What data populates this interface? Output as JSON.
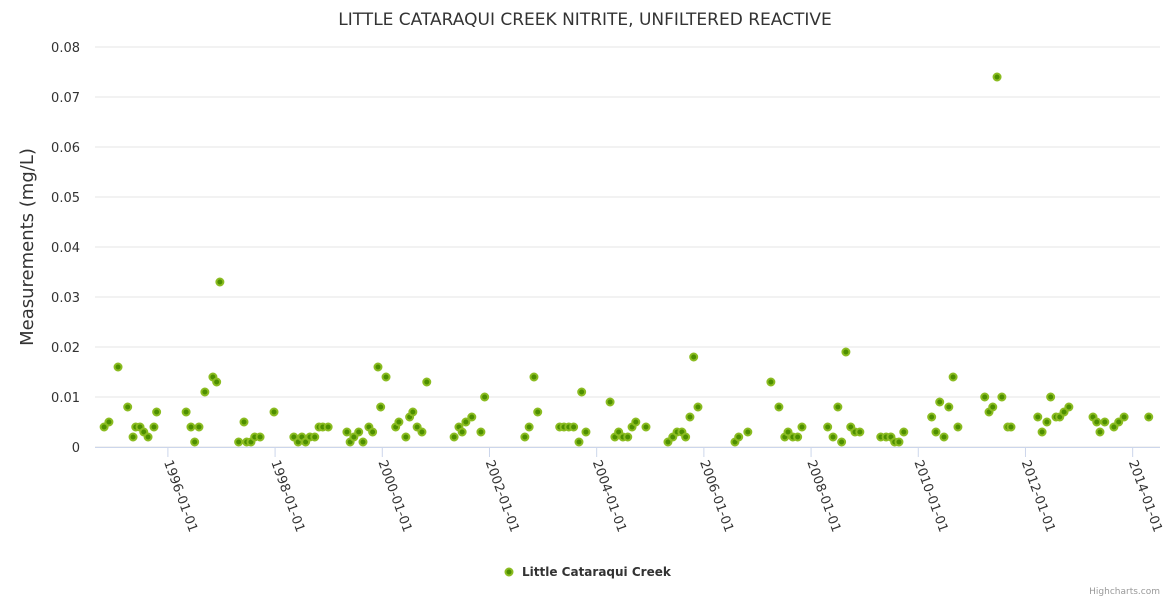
{
  "chart_data": {
    "type": "scatter",
    "title": "LITTLE CATARAQUI CREEK NITRITE, UNFILTERED REACTIVE",
    "xlabel": "",
    "ylabel": "Measurements (mg/L)",
    "xlim": [
      1994.64,
      2014.51
    ],
    "ylim": [
      0,
      0.08
    ],
    "grid": true,
    "legend_position": "bottom-center",
    "y_ticks": [
      {
        "value": 0,
        "label": "0"
      },
      {
        "value": 0.01,
        "label": "0.01"
      },
      {
        "value": 0.02,
        "label": "0.02"
      },
      {
        "value": 0.03,
        "label": "0.03"
      },
      {
        "value": 0.04,
        "label": "0.04"
      },
      {
        "value": 0.05,
        "label": "0.05"
      },
      {
        "value": 0.06,
        "label": "0.06"
      },
      {
        "value": 0.07,
        "label": "0.07"
      },
      {
        "value": 0.08,
        "label": "0.08"
      }
    ],
    "x_ticks": [
      {
        "value": 1996,
        "label": "1996-01-01"
      },
      {
        "value": 1998,
        "label": "1998-01-01"
      },
      {
        "value": 2000,
        "label": "2000-01-01"
      },
      {
        "value": 2002,
        "label": "2002-01-01"
      },
      {
        "value": 2004,
        "label": "2004-01-01"
      },
      {
        "value": 2006,
        "label": "2006-01-01"
      },
      {
        "value": 2008,
        "label": "2008-01-01"
      },
      {
        "value": 2010,
        "label": "2010-01-01"
      },
      {
        "value": 2012,
        "label": "2012-01-01"
      },
      {
        "value": 2014,
        "label": "2014-01-01"
      }
    ],
    "series": [
      {
        "name": "Little Cataraqui Creek",
        "color": "#8bbc21",
        "center_color": "#4d8f00",
        "points": [
          [
            1994.81,
            0.004
          ],
          [
            1994.9,
            0.005
          ],
          [
            1995.07,
            0.016
          ],
          [
            1995.25,
            0.008
          ],
          [
            1995.35,
            0.002
          ],
          [
            1995.4,
            0.004
          ],
          [
            1995.48,
            0.004
          ],
          [
            1995.55,
            0.003
          ],
          [
            1995.63,
            0.002
          ],
          [
            1995.74,
            0.004
          ],
          [
            1995.79,
            0.007
          ],
          [
            1996.34,
            0.007
          ],
          [
            1996.43,
            0.004
          ],
          [
            1996.5,
            0.001
          ],
          [
            1996.58,
            0.004
          ],
          [
            1996.69,
            0.011
          ],
          [
            1996.84,
            0.014
          ],
          [
            1996.91,
            0.013
          ],
          [
            1996.97,
            0.033
          ],
          [
            1997.32,
            0.001
          ],
          [
            1997.42,
            0.005
          ],
          [
            1997.47,
            0.001
          ],
          [
            1997.55,
            0.001
          ],
          [
            1997.62,
            0.002
          ],
          [
            1997.72,
            0.002
          ],
          [
            1997.98,
            0.007
          ],
          [
            1998.35,
            0.002
          ],
          [
            1998.43,
            0.001
          ],
          [
            1998.5,
            0.002
          ],
          [
            1998.57,
            0.001
          ],
          [
            1998.65,
            0.002
          ],
          [
            1998.74,
            0.002
          ],
          [
            1998.82,
            0.004
          ],
          [
            1998.89,
            0.004
          ],
          [
            1998.99,
            0.004
          ],
          [
            1999.34,
            0.003
          ],
          [
            1999.4,
            0.001
          ],
          [
            1999.47,
            0.002
          ],
          [
            1999.56,
            0.003
          ],
          [
            1999.64,
            0.001
          ],
          [
            1999.75,
            0.004
          ],
          [
            1999.82,
            0.003
          ],
          [
            1999.92,
            0.016
          ],
          [
            1999.97,
            0.008
          ],
          [
            2000.07,
            0.014
          ],
          [
            2000.25,
            0.004
          ],
          [
            2000.31,
            0.005
          ],
          [
            2000.44,
            0.002
          ],
          [
            2000.51,
            0.006
          ],
          [
            2000.57,
            0.007
          ],
          [
            2000.65,
            0.004
          ],
          [
            2000.74,
            0.003
          ],
          [
            2000.83,
            0.013
          ],
          [
            2001.34,
            0.002
          ],
          [
            2001.43,
            0.004
          ],
          [
            2001.49,
            0.003
          ],
          [
            2001.56,
            0.005
          ],
          [
            2001.67,
            0.006
          ],
          [
            2001.84,
            0.003
          ],
          [
            2001.91,
            0.01
          ],
          [
            2002.66,
            0.002
          ],
          [
            2002.74,
            0.004
          ],
          [
            2002.83,
            0.014
          ],
          [
            2002.9,
            0.007
          ],
          [
            2003.31,
            0.004
          ],
          [
            2003.39,
            0.004
          ],
          [
            2003.48,
            0.004
          ],
          [
            2003.57,
            0.004
          ],
          [
            2003.67,
            0.001
          ],
          [
            2003.72,
            0.011
          ],
          [
            2003.8,
            0.003
          ],
          [
            2004.25,
            0.009
          ],
          [
            2004.34,
            0.002
          ],
          [
            2004.41,
            0.003
          ],
          [
            2004.49,
            0.002
          ],
          [
            2004.58,
            0.002
          ],
          [
            2004.66,
            0.004
          ],
          [
            2004.73,
            0.005
          ],
          [
            2004.92,
            0.004
          ],
          [
            2005.33,
            0.001
          ],
          [
            2005.42,
            0.002
          ],
          [
            2005.5,
            0.003
          ],
          [
            2005.59,
            0.003
          ],
          [
            2005.66,
            0.002
          ],
          [
            2005.74,
            0.006
          ],
          [
            2005.81,
            0.018
          ],
          [
            2005.89,
            0.008
          ],
          [
            2006.58,
            0.001
          ],
          [
            2006.65,
            0.002
          ],
          [
            2006.82,
            0.003
          ],
          [
            2007.25,
            0.013
          ],
          [
            2007.4,
            0.008
          ],
          [
            2007.51,
            0.002
          ],
          [
            2007.57,
            0.003
          ],
          [
            2007.66,
            0.002
          ],
          [
            2007.75,
            0.002
          ],
          [
            2007.83,
            0.004
          ],
          [
            2008.31,
            0.004
          ],
          [
            2008.41,
            0.002
          ],
          [
            2008.5,
            0.008
          ],
          [
            2008.57,
            0.001
          ],
          [
            2008.65,
            0.019
          ],
          [
            2008.74,
            0.004
          ],
          [
            2008.82,
            0.003
          ],
          [
            2008.91,
            0.003
          ],
          [
            2009.3,
            0.002
          ],
          [
            2009.4,
            0.002
          ],
          [
            2009.49,
            0.002
          ],
          [
            2009.56,
            0.001
          ],
          [
            2009.64,
            0.001
          ],
          [
            2009.73,
            0.003
          ],
          [
            2010.25,
            0.006
          ],
          [
            2010.33,
            0.003
          ],
          [
            2010.4,
            0.009
          ],
          [
            2010.48,
            0.002
          ],
          [
            2010.57,
            0.008
          ],
          [
            2010.65,
            0.014
          ],
          [
            2010.74,
            0.004
          ],
          [
            2011.24,
            0.01
          ],
          [
            2011.32,
            0.007
          ],
          [
            2011.39,
            0.008
          ],
          [
            2011.47,
            0.074
          ],
          [
            2011.56,
            0.01
          ],
          [
            2011.67,
            0.004
          ],
          [
            2011.73,
            0.004
          ],
          [
            2012.23,
            0.006
          ],
          [
            2012.31,
            0.003
          ],
          [
            2012.4,
            0.005
          ],
          [
            2012.47,
            0.01
          ],
          [
            2012.57,
            0.006
          ],
          [
            2012.64,
            0.006
          ],
          [
            2012.72,
            0.007
          ],
          [
            2012.81,
            0.008
          ],
          [
            2013.26,
            0.006
          ],
          [
            2013.33,
            0.005
          ],
          [
            2013.39,
            0.003
          ],
          [
            2013.48,
            0.005
          ],
          [
            2013.65,
            0.004
          ],
          [
            2013.74,
            0.005
          ],
          [
            2013.84,
            0.006
          ],
          [
            2014.3,
            0.006
          ]
        ]
      }
    ],
    "credits": "Highcharts.com"
  }
}
